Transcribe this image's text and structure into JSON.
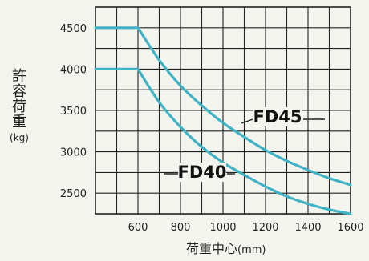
{
  "chart_data": {
    "type": "line",
    "title": "",
    "ylabel": "許容荷重",
    "ylabel_unit": "(kg)",
    "xlabel": "荷重中心",
    "xlabel_unit": "(mm)",
    "xlim": [
      400,
      1600
    ],
    "ylim": [
      2250,
      4750
    ],
    "x_ticks": [
      600,
      800,
      1000,
      1200,
      1400,
      1600
    ],
    "x_tick_labels": [
      "600",
      "800",
      "1000",
      "1200",
      "1400",
      "1600"
    ],
    "y_ticks": [
      2500,
      3000,
      3500,
      4000,
      4500
    ],
    "y_tick_labels": [
      "2500",
      "3000",
      "3500",
      "4000",
      "4500"
    ],
    "grid": true,
    "colors": {
      "line": "#3fb3c4",
      "grid": "#222222",
      "text": "#222222"
    },
    "series": [
      {
        "name": "FD45",
        "x": [
          400,
          600,
          700,
          800,
          900,
          1000,
          1100,
          1200,
          1300,
          1400,
          1500,
          1600
        ],
        "y": [
          4500,
          4500,
          4110,
          3800,
          3560,
          3350,
          3180,
          3020,
          2890,
          2780,
          2680,
          2600
        ]
      },
      {
        "name": "FD40",
        "x": [
          400,
          600,
          700,
          800,
          900,
          1000,
          1100,
          1200,
          1300,
          1400,
          1500,
          1600
        ],
        "y": [
          4000,
          4000,
          3600,
          3300,
          3060,
          2870,
          2720,
          2580,
          2460,
          2370,
          2300,
          2250
        ]
      }
    ]
  }
}
